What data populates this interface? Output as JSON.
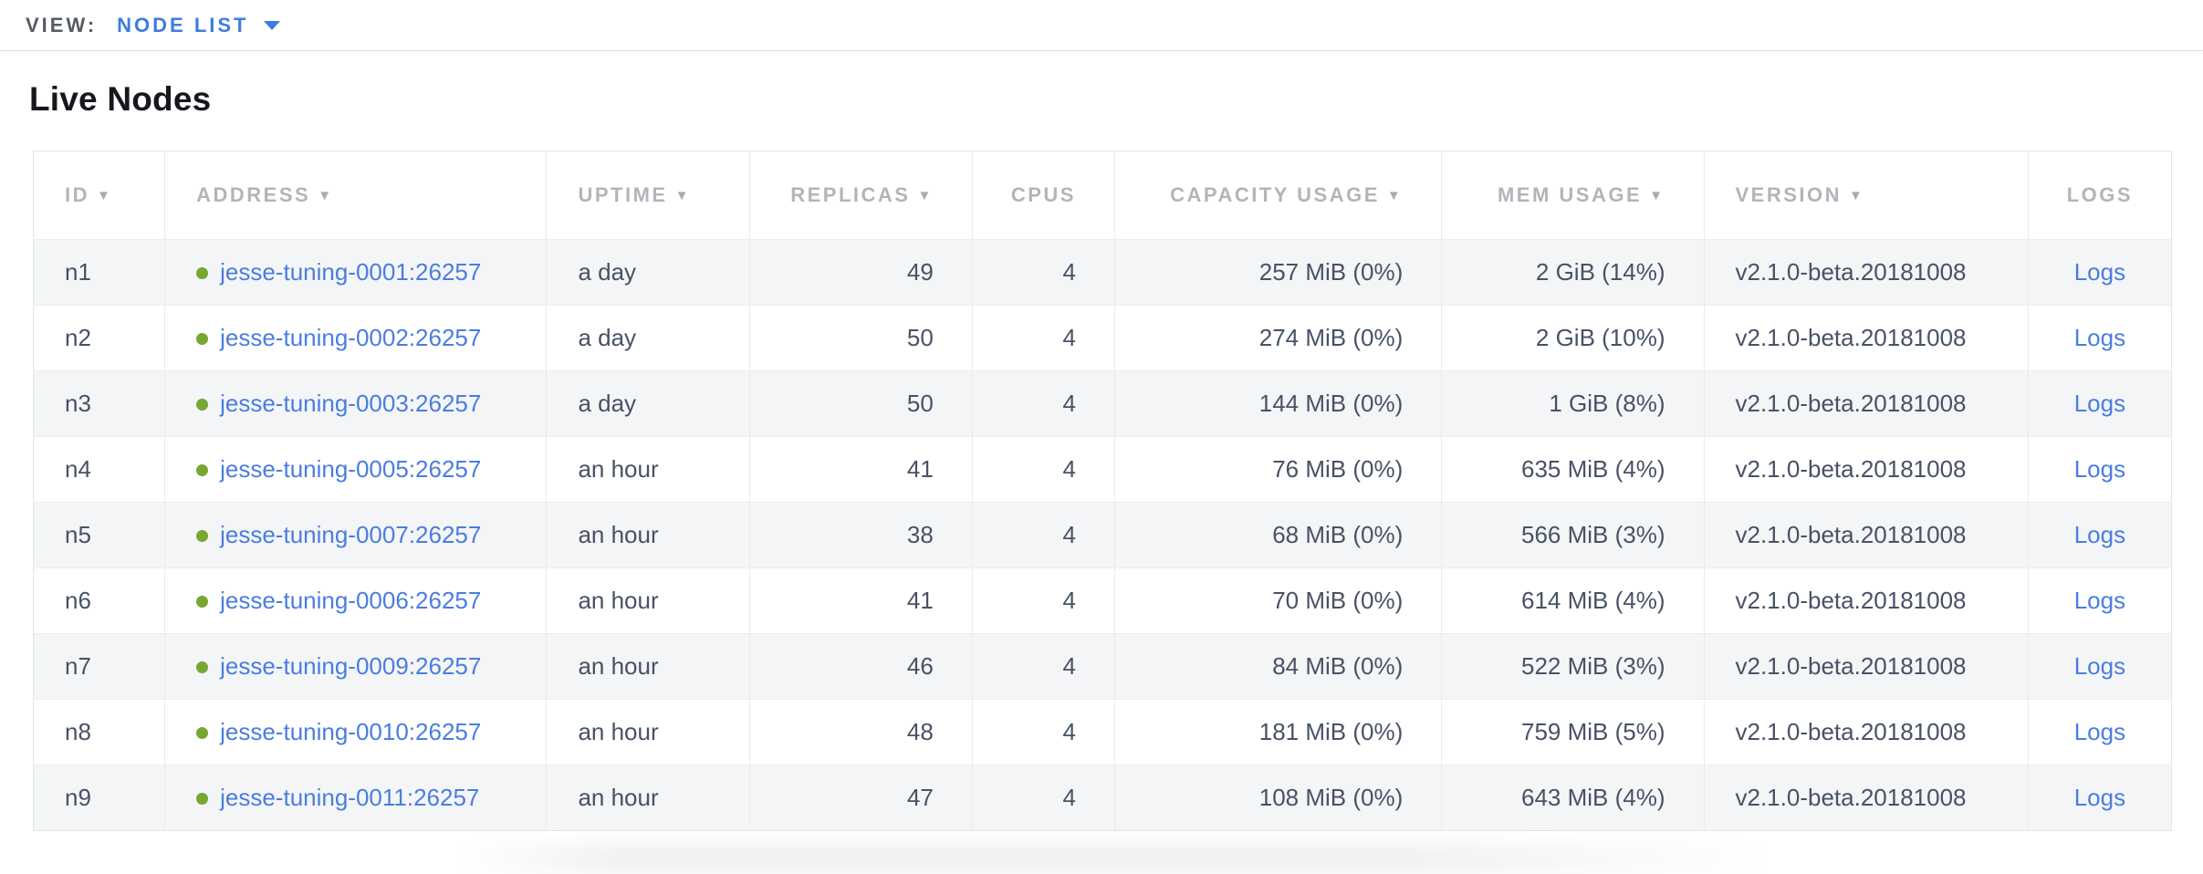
{
  "view_bar": {
    "label": "VIEW:",
    "selected": "NODE LIST"
  },
  "page": {
    "title": "Live Nodes"
  },
  "colors": {
    "accent_blue": "#3d7ce0",
    "link_blue": "#4a7de1",
    "live_green": "#76a831",
    "header_gray": "#b1b5bb",
    "cell_text": "#475266",
    "stripe_bg": "#f4f5f6"
  },
  "table": {
    "sort_icon": "▼",
    "columns": [
      {
        "key": "id",
        "label": "ID",
        "sortable": true,
        "align": "left"
      },
      {
        "key": "address",
        "label": "ADDRESS",
        "sortable": true,
        "align": "left"
      },
      {
        "key": "uptime",
        "label": "UPTIME",
        "sortable": true,
        "align": "left"
      },
      {
        "key": "replicas",
        "label": "REPLICAS",
        "sortable": true,
        "align": "right"
      },
      {
        "key": "cpus",
        "label": "CPUS",
        "sortable": false,
        "align": "right"
      },
      {
        "key": "capacity",
        "label": "CAPACITY USAGE",
        "sortable": true,
        "align": "right"
      },
      {
        "key": "mem",
        "label": "MEM USAGE",
        "sortable": true,
        "align": "right"
      },
      {
        "key": "version",
        "label": "VERSION",
        "sortable": true,
        "align": "left"
      },
      {
        "key": "logs",
        "label": "LOGS",
        "sortable": false,
        "align": "center"
      }
    ],
    "rows": [
      {
        "id": "n1",
        "status": "live",
        "address": "jesse-tuning-0001:26257",
        "uptime": "a day",
        "replicas": "49",
        "cpus": "4",
        "capacity": "257 MiB (0%)",
        "mem": "2 GiB (14%)",
        "version": "v2.1.0-beta.20181008",
        "logs": "Logs"
      },
      {
        "id": "n2",
        "status": "live",
        "address": "jesse-tuning-0002:26257",
        "uptime": "a day",
        "replicas": "50",
        "cpus": "4",
        "capacity": "274 MiB (0%)",
        "mem": "2 GiB (10%)",
        "version": "v2.1.0-beta.20181008",
        "logs": "Logs"
      },
      {
        "id": "n3",
        "status": "live",
        "address": "jesse-tuning-0003:26257",
        "uptime": "a day",
        "replicas": "50",
        "cpus": "4",
        "capacity": "144 MiB (0%)",
        "mem": "1 GiB (8%)",
        "version": "v2.1.0-beta.20181008",
        "logs": "Logs"
      },
      {
        "id": "n4",
        "status": "live",
        "address": "jesse-tuning-0005:26257",
        "uptime": "an hour",
        "replicas": "41",
        "cpus": "4",
        "capacity": "76 MiB (0%)",
        "mem": "635 MiB (4%)",
        "version": "v2.1.0-beta.20181008",
        "logs": "Logs"
      },
      {
        "id": "n5",
        "status": "live",
        "address": "jesse-tuning-0007:26257",
        "uptime": "an hour",
        "replicas": "38",
        "cpus": "4",
        "capacity": "68 MiB (0%)",
        "mem": "566 MiB (3%)",
        "version": "v2.1.0-beta.20181008",
        "logs": "Logs"
      },
      {
        "id": "n6",
        "status": "live",
        "address": "jesse-tuning-0006:26257",
        "uptime": "an hour",
        "replicas": "41",
        "cpus": "4",
        "capacity": "70 MiB (0%)",
        "mem": "614 MiB (4%)",
        "version": "v2.1.0-beta.20181008",
        "logs": "Logs"
      },
      {
        "id": "n7",
        "status": "live",
        "address": "jesse-tuning-0009:26257",
        "uptime": "an hour",
        "replicas": "46",
        "cpus": "4",
        "capacity": "84 MiB (0%)",
        "mem": "522 MiB (3%)",
        "version": "v2.1.0-beta.20181008",
        "logs": "Logs"
      },
      {
        "id": "n8",
        "status": "live",
        "address": "jesse-tuning-0010:26257",
        "uptime": "an hour",
        "replicas": "48",
        "cpus": "4",
        "capacity": "181 MiB (0%)",
        "mem": "759 MiB (5%)",
        "version": "v2.1.0-beta.20181008",
        "logs": "Logs"
      },
      {
        "id": "n9",
        "status": "live",
        "address": "jesse-tuning-0011:26257",
        "uptime": "an hour",
        "replicas": "47",
        "cpus": "4",
        "capacity": "108 MiB (0%)",
        "mem": "643 MiB (4%)",
        "version": "v2.1.0-beta.20181008",
        "logs": "Logs"
      }
    ]
  }
}
